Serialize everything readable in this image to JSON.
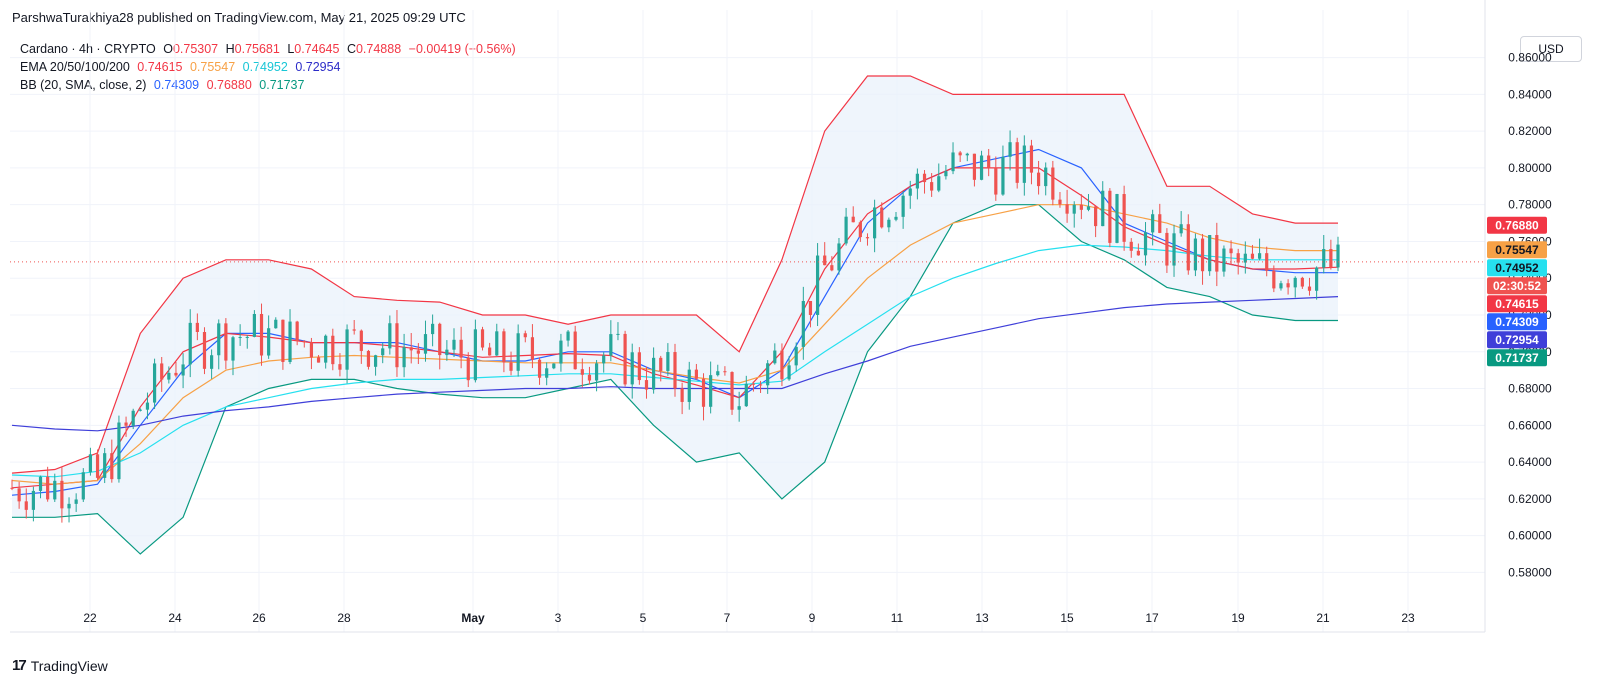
{
  "header": {
    "publisher": "ParshwaTurakhiya28 published on TradingView.com, May 21, 2025 09:29 UTC"
  },
  "legend": {
    "symbol": "Cardano · 4h · CRYPTO",
    "ohlc": {
      "o_label": "O",
      "o": "0.75307",
      "h_label": "H",
      "h": "0.75681",
      "l_label": "L",
      "l": "0.74645",
      "c_label": "C",
      "c": "0.74888",
      "change": "−0.00419 (−0.56%)"
    },
    "ema_label": "EMA 20/50/100/200",
    "ema_values": [
      "0.74615",
      "0.75547",
      "0.74952",
      "0.72954"
    ],
    "bb_label": "BB (20, SMA, close, 2)",
    "bb_values": [
      "0.74309",
      "0.76880",
      "0.71737"
    ]
  },
  "currency_button": "USD",
  "footer": {
    "brand": "TradingView",
    "logo": "17"
  },
  "colors": {
    "up": "#26a69a",
    "down": "#ef5350",
    "ema20": "#f23645",
    "ema50": "#f7a146",
    "ema100": "#26e0ef",
    "ema200": "#3f3fd9",
    "bb_basis": "#2962ff",
    "bb_upper": "#f23645",
    "bb_lower": "#089981",
    "bb_fill": "#e8f1fb",
    "grid": "#f0f3fa"
  },
  "chart_data": {
    "type": "line",
    "ylim": [
      0.565,
      0.875
    ],
    "y_ticks": [
      "0.58000",
      "0.60000",
      "0.62000",
      "0.64000",
      "0.66000",
      "0.68000",
      "0.70000",
      "0.72000",
      "0.74000",
      "0.76000",
      "0.78000",
      "0.80000",
      "0.82000",
      "0.84000",
      "0.86000"
    ],
    "x_ticks": [
      "22",
      "24",
      "26",
      "28",
      "May",
      "3",
      "5",
      "7",
      "9",
      "11",
      "13",
      "15",
      "17",
      "19",
      "21",
      "23"
    ],
    "x": [
      "Apr 20",
      "Apr 21",
      "Apr 22",
      "Apr 23",
      "Apr 24",
      "Apr 25",
      "Apr 26",
      "Apr 27",
      "Apr 28",
      "Apr 29",
      "Apr 30",
      "May 1",
      "May 2",
      "May 3",
      "May 4",
      "May 5",
      "May 6",
      "May 7",
      "May 8",
      "May 9",
      "May 10",
      "May 11",
      "May 12",
      "May 13",
      "May 14",
      "May 15",
      "May 16",
      "May 17",
      "May 18",
      "May 19",
      "May 20",
      "May 21"
    ],
    "series": [
      {
        "name": "BB upper",
        "values": [
          0.634,
          0.636,
          0.645,
          0.71,
          0.74,
          0.75,
          0.75,
          0.745,
          0.73,
          0.728,
          0.727,
          0.72,
          0.72,
          0.715,
          0.72,
          0.72,
          0.72,
          0.7,
          0.75,
          0.82,
          0.85,
          0.85,
          0.84,
          0.84,
          0.84,
          0.84,
          0.84,
          0.79,
          0.79,
          0.775,
          0.77,
          0.77
        ]
      },
      {
        "name": "BB basis",
        "values": [
          0.622,
          0.624,
          0.628,
          0.66,
          0.69,
          0.71,
          0.71,
          0.705,
          0.705,
          0.705,
          0.7,
          0.695,
          0.695,
          0.7,
          0.7,
          0.69,
          0.685,
          0.675,
          0.69,
          0.73,
          0.77,
          0.79,
          0.8,
          0.805,
          0.81,
          0.8,
          0.77,
          0.76,
          0.75,
          0.745,
          0.743,
          0.743
        ]
      },
      {
        "name": "BB lower",
        "values": [
          0.61,
          0.61,
          0.612,
          0.59,
          0.61,
          0.67,
          0.68,
          0.685,
          0.685,
          0.68,
          0.677,
          0.675,
          0.675,
          0.68,
          0.685,
          0.66,
          0.64,
          0.645,
          0.62,
          0.64,
          0.7,
          0.73,
          0.77,
          0.78,
          0.78,
          0.76,
          0.75,
          0.735,
          0.73,
          0.72,
          0.717,
          0.717
        ]
      },
      {
        "name": "EMA 20",
        "values": [
          0.626,
          0.628,
          0.63,
          0.67,
          0.7,
          0.71,
          0.708,
          0.705,
          0.705,
          0.703,
          0.7,
          0.697,
          0.698,
          0.699,
          0.698,
          0.688,
          0.682,
          0.675,
          0.7,
          0.745,
          0.775,
          0.79,
          0.8,
          0.8,
          0.8,
          0.785,
          0.768,
          0.758,
          0.75,
          0.745,
          0.745,
          0.746
        ]
      },
      {
        "name": "EMA 50",
        "values": [
          0.63,
          0.628,
          0.63,
          0.65,
          0.675,
          0.69,
          0.695,
          0.697,
          0.698,
          0.697,
          0.696,
          0.695,
          0.694,
          0.694,
          0.694,
          0.69,
          0.686,
          0.683,
          0.69,
          0.715,
          0.74,
          0.758,
          0.77,
          0.775,
          0.78,
          0.78,
          0.775,
          0.77,
          0.762,
          0.757,
          0.755,
          0.755
        ]
      },
      {
        "name": "EMA 100",
        "values": [
          0.633,
          0.632,
          0.635,
          0.645,
          0.66,
          0.67,
          0.675,
          0.68,
          0.683,
          0.685,
          0.685,
          0.686,
          0.687,
          0.688,
          0.688,
          0.686,
          0.684,
          0.682,
          0.684,
          0.7,
          0.715,
          0.73,
          0.74,
          0.748,
          0.755,
          0.758,
          0.757,
          0.755,
          0.752,
          0.75,
          0.75,
          0.75
        ]
      },
      {
        "name": "EMA 200",
        "values": [
          0.66,
          0.658,
          0.657,
          0.66,
          0.665,
          0.668,
          0.67,
          0.673,
          0.675,
          0.677,
          0.678,
          0.679,
          0.68,
          0.68,
          0.681,
          0.68,
          0.68,
          0.68,
          0.68,
          0.688,
          0.695,
          0.703,
          0.708,
          0.713,
          0.718,
          0.721,
          0.724,
          0.726,
          0.727,
          0.728,
          0.729,
          0.73
        ]
      }
    ],
    "price_badges": [
      {
        "label": "0.76880",
        "value": 0.7688,
        "color": "#f23645"
      },
      {
        "label": "0.75547",
        "value": 0.75547,
        "color": "#f7a146"
      },
      {
        "label": "0.74952",
        "value": 0.74952,
        "color": "#26e0ef"
      },
      {
        "label": "02:30:52",
        "value": 0.74888,
        "color": "#ef5350"
      },
      {
        "label": "0.74615",
        "value": 0.74615,
        "color": "#f23645"
      },
      {
        "label": "0.74309",
        "value": 0.74309,
        "color": "#2962ff"
      },
      {
        "label": "0.72954",
        "value": 0.72954,
        "color": "#3f3fd9"
      },
      {
        "label": "0.71737",
        "value": 0.71737,
        "color": "#089981"
      }
    ],
    "last_price": 0.74888
  }
}
